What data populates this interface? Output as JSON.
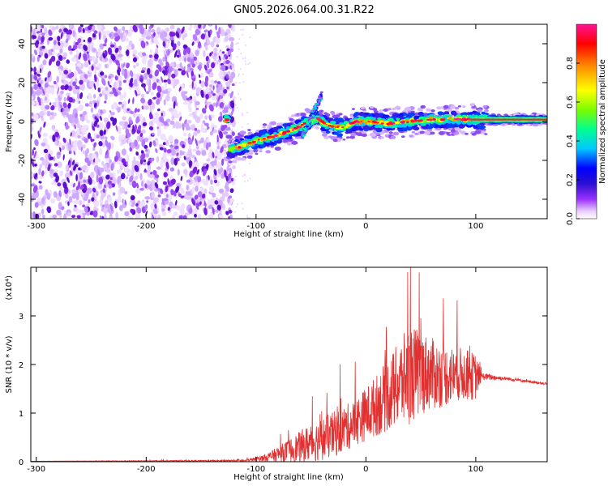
{
  "title": "GN05.2026.064.00.31.R22",
  "chart_data": [
    {
      "type": "heatmap",
      "name": "spectrogram",
      "xlabel": "Height of straight line (km)",
      "ylabel": "Frequency (Hz)",
      "xlim": [
        -305,
        165
      ],
      "ylim": [
        -50,
        50
      ],
      "xticks": [
        -300,
        -200,
        -100,
        0,
        100
      ],
      "xtick_labels": [
        "-300",
        "-200",
        "-100",
        "0",
        "100"
      ],
      "yticks": [
        -40,
        -20,
        0,
        20,
        40
      ],
      "ytick_labels": [
        "-40",
        "-20",
        "0",
        "20",
        "40"
      ],
      "noise_region_x": [
        -305,
        -120
      ],
      "ridge": [
        {
          "x": -125,
          "y": -15
        },
        {
          "x": -110,
          "y": -12
        },
        {
          "x": -95,
          "y": -9
        },
        {
          "x": -85,
          "y": -8
        },
        {
          "x": -75,
          "y": -6
        },
        {
          "x": -65,
          "y": -4
        },
        {
          "x": -55,
          "y": -1
        },
        {
          "x": -45,
          "y": 2
        },
        {
          "x": -35,
          "y": -2
        },
        {
          "x": -20,
          "y": -3
        },
        {
          "x": -10,
          "y": 0
        },
        {
          "x": 0,
          "y": 0
        },
        {
          "x": 20,
          "y": -1
        },
        {
          "x": 40,
          "y": 0
        },
        {
          "x": 60,
          "y": 1
        },
        {
          "x": 80,
          "y": 1
        },
        {
          "x": 100,
          "y": 1
        },
        {
          "x": 130,
          "y": 1
        },
        {
          "x": 165,
          "y": 1
        }
      ],
      "colorbar": {
        "label": "Normalized spectral amplitude",
        "range": [
          0,
          1
        ],
        "ticks": [
          0.0,
          0.2,
          0.4,
          0.6,
          0.8
        ],
        "tick_labels": [
          "0.0",
          "0.2",
          "0.4",
          "0.6",
          "0.8"
        ],
        "colors": [
          "#ffffff",
          "#d9b3ff",
          "#8a2be2",
          "#3a1ee0",
          "#0000ff",
          "#00bfff",
          "#00ff80",
          "#7cfc00",
          "#ffff00",
          "#ff8c00",
          "#ff0000",
          "#ff1493"
        ]
      },
      "colormap_note": "low amplitudes white/lavender to purple, blue, cyan, green, yellow, red, magenta at maximum"
    },
    {
      "type": "line",
      "name": "snr",
      "xlabel": "Height of straight line (km)",
      "ylabel": "SNR (10 * v/v)",
      "y_multiplier": "(x10⁴)",
      "xlim": [
        -305,
        165
      ],
      "ylim": [
        0,
        4
      ],
      "xticks": [
        -300,
        -200,
        -100,
        0,
        100
      ],
      "xtick_labels": [
        "-300",
        "-200",
        "-100",
        "0",
        "100"
      ],
      "yticks": [
        0,
        1,
        2,
        3
      ],
      "ytick_labels": [
        "0",
        "1",
        "2",
        "3"
      ],
      "color": "#e03030",
      "envelope": [
        {
          "x": -305,
          "base": 0.01,
          "spread": 0.0
        },
        {
          "x": -110,
          "base": 0.02,
          "spread": 0.02
        },
        {
          "x": -90,
          "base": 0.08,
          "spread": 0.1
        },
        {
          "x": -70,
          "base": 0.2,
          "spread": 0.3
        },
        {
          "x": -50,
          "base": 0.35,
          "spread": 0.5
        },
        {
          "x": -30,
          "base": 0.5,
          "spread": 0.6
        },
        {
          "x": -10,
          "base": 0.75,
          "spread": 0.6
        },
        {
          "x": 10,
          "base": 1.1,
          "spread": 0.8
        },
        {
          "x": 25,
          "base": 1.4,
          "spread": 1.0
        },
        {
          "x": 40,
          "base": 1.7,
          "spread": 1.3
        },
        {
          "x": 55,
          "base": 1.75,
          "spread": 1.0
        },
        {
          "x": 70,
          "base": 1.7,
          "spread": 0.8
        },
        {
          "x": 85,
          "base": 1.75,
          "spread": 0.7
        },
        {
          "x": 100,
          "base": 1.7,
          "spread": 0.6
        },
        {
          "x": 105,
          "base": 1.75,
          "spread": 0.1
        },
        {
          "x": 130,
          "base": 1.7,
          "spread": 0.04
        },
        {
          "x": 165,
          "base": 1.6,
          "spread": 0.03
        }
      ],
      "peak": {
        "x": 38,
        "y": 3.9
      }
    }
  ]
}
